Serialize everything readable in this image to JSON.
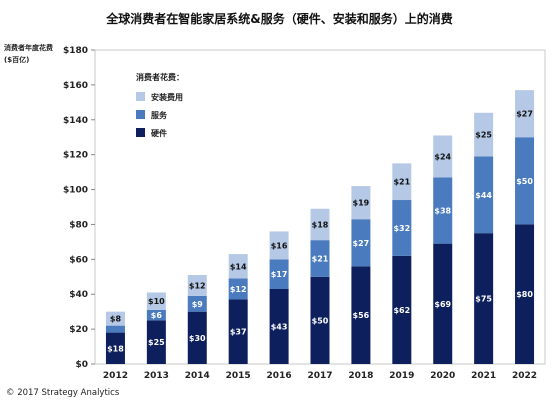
{
  "copyright": "© 2017 Strategy Analytics",
  "chart_data": {
    "type": "bar",
    "stacked": true,
    "title": "全球消费者在智能家居系统&服务（硬件、安装和服务）上的消费",
    "ylabel": "消费者年度花费 ($百亿)",
    "xlabel": "",
    "categories": [
      "2012",
      "2013",
      "2014",
      "2015",
      "2016",
      "2017",
      "2018",
      "2019",
      "2020",
      "2021",
      "2022"
    ],
    "ylim": [
      0,
      180
    ],
    "yticks": [
      0,
      20,
      40,
      60,
      80,
      100,
      120,
      140,
      160,
      180
    ],
    "ytick_labels": [
      "$0",
      "$20",
      "$40",
      "$60",
      "$80",
      "$100",
      "$120",
      "$140",
      "$160",
      "$180"
    ],
    "grid": false,
    "legend_title": "消费者花费：",
    "legend_position": "top-left",
    "series": [
      {
        "name": "硬件",
        "color": "#0d1f5c",
        "label_color": "#ffffff",
        "values": [
          18,
          25,
          30,
          37,
          43,
          50,
          56,
          62,
          69,
          75,
          80
        ],
        "labels": [
          "$18",
          "$25",
          "$30",
          "$37",
          "$43",
          "$50",
          "$56",
          "$62",
          "$69",
          "$75",
          "$80"
        ]
      },
      {
        "name": "服务",
        "color": "#4a7bbe",
        "label_color": "#ffffff",
        "values": [
          4,
          6,
          9,
          12,
          17,
          21,
          27,
          32,
          38,
          44,
          50
        ],
        "labels": [
          "",
          "$6",
          "$9",
          "$12",
          "$17",
          "$21",
          "$27",
          "$32",
          "$38",
          "$44",
          "$50"
        ]
      },
      {
        "name": "安装费用",
        "color": "#b5c9e6",
        "label_color": "#111111",
        "values": [
          8,
          10,
          12,
          14,
          16,
          18,
          19,
          21,
          24,
          25,
          27
        ],
        "labels": [
          "$8",
          "$10",
          "$12",
          "$14",
          "$16",
          "$18",
          "$19",
          "$21",
          "$24",
          "$25",
          "$27"
        ]
      }
    ]
  }
}
